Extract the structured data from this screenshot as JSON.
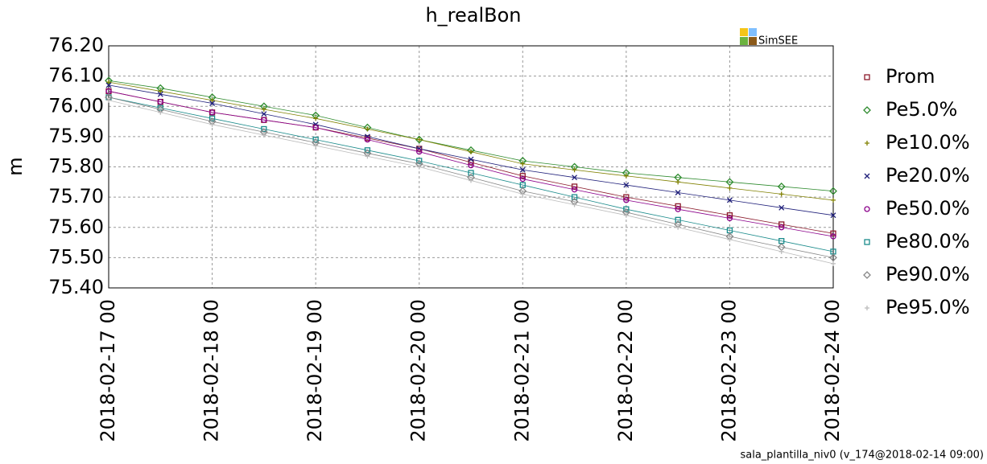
{
  "chart_data": {
    "type": "line",
    "title": "h_realBon",
    "y_label": "m",
    "logo_text": "SimSEE",
    "footer": "sala_plantilla_niv0 (v_174@2018-02-14 09:00)",
    "x": [
      "2018-02-17 00",
      "2018-02-17 12",
      "2018-02-18 00",
      "2018-02-18 12",
      "2018-02-19 00",
      "2018-02-19 12",
      "2018-02-20 00",
      "2018-02-20 12",
      "2018-02-21 00",
      "2018-02-21 12",
      "2018-02-22 00",
      "2018-02-22 12",
      "2018-02-23 00",
      "2018-02-23 12",
      "2018-02-24 00"
    ],
    "xlim": [
      "2018-02-17 00",
      "2018-02-24 00"
    ],
    "xticks": [
      "2018-02-17 00",
      "2018-02-18 00",
      "2018-02-19 00",
      "2018-02-20 00",
      "2018-02-21 00",
      "2018-02-22 00",
      "2018-02-23 00",
      "2018-02-24 00"
    ],
    "ylim": [
      75.4,
      76.2
    ],
    "yticks": [
      {
        "value": 75.4,
        "label": "75.40"
      },
      {
        "value": 75.5,
        "label": "75.50"
      },
      {
        "value": 75.6,
        "label": "75.60"
      },
      {
        "value": 75.7,
        "label": "75.70"
      },
      {
        "value": 75.8,
        "label": "75.80"
      },
      {
        "value": 75.9,
        "label": "75.90"
      },
      {
        "value": 76.0,
        "label": "76.00"
      },
      {
        "value": 76.1,
        "label": "76.10"
      },
      {
        "value": 76.2,
        "label": "76.20"
      }
    ],
    "grid": true,
    "legend": "right",
    "series": [
      {
        "name": "Prom",
        "color": "#8b1a2b",
        "marker": "square",
        "values": [
          76.05,
          76.015,
          75.98,
          75.955,
          75.93,
          75.895,
          75.86,
          75.815,
          75.77,
          75.735,
          75.7,
          75.67,
          75.64,
          75.61,
          75.58
        ]
      },
      {
        "name": "Pe5.0%",
        "color": "#2e8b2e",
        "marker": "diamond",
        "values": [
          76.085,
          76.06,
          76.03,
          76.0,
          75.97,
          75.93,
          75.89,
          75.855,
          75.82,
          75.8,
          75.78,
          75.765,
          75.75,
          75.735,
          75.72
        ]
      },
      {
        "name": "Pe10.0%",
        "color": "#808000",
        "marker": "plus",
        "values": [
          76.08,
          76.05,
          76.02,
          75.99,
          75.96,
          75.925,
          75.89,
          75.85,
          75.81,
          75.79,
          75.77,
          75.75,
          75.73,
          75.71,
          75.69
        ]
      },
      {
        "name": "Pe20.0%",
        "color": "#1f1f7a",
        "marker": "cross",
        "values": [
          76.07,
          76.04,
          76.01,
          75.975,
          75.94,
          75.9,
          75.86,
          75.825,
          75.79,
          75.765,
          75.74,
          75.715,
          75.69,
          75.665,
          75.64
        ]
      },
      {
        "name": "Pe50.0%",
        "color": "#8b008b",
        "marker": "circle",
        "values": [
          76.05,
          76.015,
          75.98,
          75.955,
          75.93,
          75.89,
          75.85,
          75.805,
          75.76,
          75.725,
          75.69,
          75.66,
          75.63,
          75.6,
          75.57
        ]
      },
      {
        "name": "Pe80.0%",
        "color": "#1a8b8b",
        "marker": "square",
        "values": [
          76.03,
          75.995,
          75.96,
          75.925,
          75.89,
          75.855,
          75.82,
          75.78,
          75.74,
          75.7,
          75.66,
          75.625,
          75.59,
          75.555,
          75.52
        ]
      },
      {
        "name": "Pe90.0%",
        "color": "#888888",
        "marker": "diamond",
        "values": [
          76.03,
          75.99,
          75.95,
          75.915,
          75.88,
          75.845,
          75.81,
          75.765,
          75.72,
          75.685,
          75.65,
          75.61,
          75.57,
          75.535,
          75.5
        ]
      },
      {
        "name": "Pe95.0%",
        "color": "#bbbbbb",
        "marker": "plus",
        "values": [
          76.02,
          75.98,
          75.94,
          75.905,
          75.87,
          75.835,
          75.8,
          75.755,
          75.71,
          75.675,
          75.64,
          75.6,
          75.56,
          75.52,
          75.48
        ]
      }
    ]
  }
}
